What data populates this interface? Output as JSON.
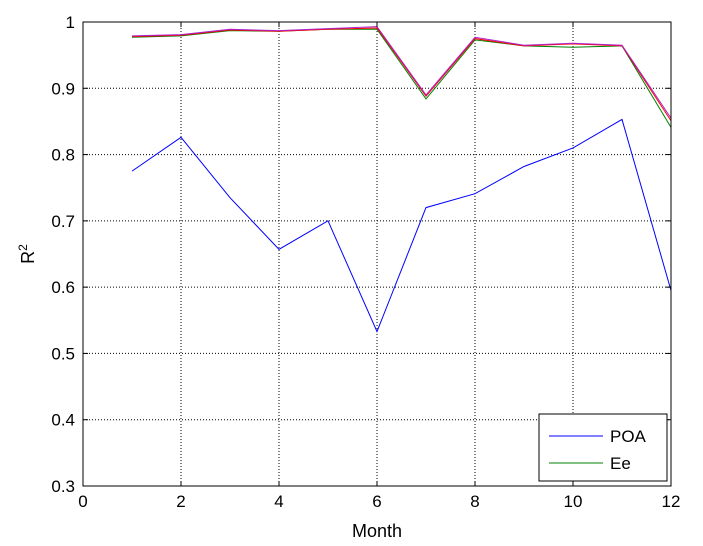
{
  "chart_data": {
    "type": "line",
    "title": "",
    "xlabel": "Month",
    "ylabel": "R",
    "ylabel_superscript": "2",
    "xlim": [
      0,
      12
    ],
    "ylim": [
      0.3,
      1
    ],
    "xticks": [
      0,
      2,
      4,
      6,
      8,
      10,
      12
    ],
    "yticks": [
      0.3,
      0.4,
      0.5,
      0.6,
      0.7,
      0.8,
      0.9,
      1
    ],
    "ytick_labels": [
      "0.3",
      "0.4",
      "0.5",
      "0.6",
      "0.7",
      "0.8",
      "0.9",
      "1"
    ],
    "grid": true,
    "legend_position": "bottom-right",
    "x": [
      1,
      2,
      3,
      4,
      5,
      6,
      7,
      8,
      9,
      10,
      11,
      12
    ],
    "series": [
      {
        "name": "POA",
        "color": "#0000ff",
        "in_legend": true,
        "values": [
          0.775,
          0.826,
          0.735,
          0.657,
          0.7,
          0.533,
          0.72,
          0.741,
          0.782,
          0.81,
          0.853,
          0.595
        ]
      },
      {
        "name": "Ee",
        "color": "#008000",
        "in_legend": true,
        "values": [
          0.977,
          0.979,
          0.987,
          0.986,
          0.989,
          0.989,
          0.884,
          0.973,
          0.964,
          0.962,
          0.964,
          0.841
        ]
      },
      {
        "name": "",
        "color": "#ff0000",
        "in_legend": false,
        "values": [
          0.978,
          0.98,
          0.988,
          0.986,
          0.989,
          0.991,
          0.888,
          0.975,
          0.964,
          0.967,
          0.964,
          0.851
        ]
      },
      {
        "name": "",
        "color": "#aa22cc",
        "in_legend": false,
        "values": [
          0.979,
          0.981,
          0.989,
          0.987,
          0.99,
          0.993,
          0.89,
          0.977,
          0.965,
          0.968,
          0.965,
          0.855
        ]
      }
    ]
  }
}
